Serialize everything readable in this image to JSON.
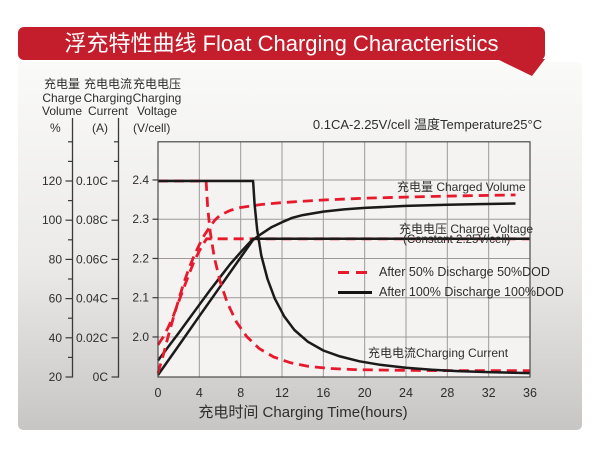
{
  "banner": {
    "title": "浮充特性曲线 Float Charging Characteristics",
    "color": "#c41e2d"
  },
  "condition": "0.1CA-2.25V/cell  温度Temperature25°C",
  "axis_headers": [
    {
      "cn": "充电量",
      "en1": "Charge",
      "en2": "Volume",
      "unit": "%"
    },
    {
      "cn": "充电电流",
      "en1": "Charging",
      "en2": "Current",
      "unit": "(A)"
    },
    {
      "cn": "充电电压",
      "en1": "Charging",
      "en2": "Voltage",
      "unit": "(V/cell)"
    }
  ],
  "chart_data": {
    "type": "line",
    "title": "浮充特性曲线 Float Charging Characteristics",
    "condition": "0.1CA-2.25V/cell 温度Temperature25°C",
    "x_axis": {
      "label": "充电时间 Charging Time(hours)",
      "ticks": [
        0,
        4,
        8,
        12,
        16,
        20,
        24,
        28,
        32,
        36
      ],
      "range": [
        0,
        36
      ]
    },
    "y_axes": {
      "volume": {
        "ticks": [
          20,
          40,
          60,
          80,
          100,
          120
        ],
        "unit": "%",
        "range": [
          20,
          120
        ]
      },
      "current": {
        "tick_labels": [
          "0C",
          "0.02C",
          "0.04C",
          "0.06C",
          "0.08C",
          "0.10C"
        ],
        "tick_values": [
          0,
          0.02,
          0.04,
          0.06,
          0.08,
          0.1
        ],
        "unit": "A(C-rate)"
      },
      "voltage": {
        "ticks": [
          "2.0",
          "2.1",
          "2.2",
          "2.3",
          "2.4"
        ],
        "tick_values": [
          2.0,
          2.1,
          2.2,
          2.3,
          2.4
        ],
        "unit": "V/cell"
      }
    },
    "annotations": {
      "volume": "充电量 Charged Volume",
      "voltage": "充电电压 Charge Voltage",
      "voltage_sub": "(Constant 2.25V/cell)",
      "current": "充电电流Charging Current"
    },
    "legend": [
      {
        "label": "After 50% Discharge 50%DOD",
        "style": "red-dashed"
      },
      {
        "label": "After 100%  Discharge 100%DOD",
        "style": "black-solid"
      }
    ],
    "colors": {
      "red": "#e8192d",
      "black": "#1a1a1a",
      "grid": "#9b9b99",
      "frame": "#4a4a4a",
      "text": "#2e2e2e"
    },
    "series": [
      {
        "name": "charge-voltage-50dod",
        "axis": "voltage",
        "color": "red",
        "dashed": true,
        "points": [
          [
            0,
            1.98
          ],
          [
            0.5,
            2.0
          ],
          [
            1,
            2.025
          ],
          [
            1.5,
            2.055
          ],
          [
            2,
            2.09
          ],
          [
            2.5,
            2.125
          ],
          [
            3,
            2.16
          ],
          [
            3.5,
            2.193
          ],
          [
            4,
            2.219
          ],
          [
            4.4,
            2.238
          ],
          [
            4.7,
            2.25
          ],
          [
            36,
            2.25
          ]
        ]
      },
      {
        "name": "charge-voltage-100dod",
        "axis": "voltage",
        "color": "black",
        "dashed": false,
        "points": [
          [
            0,
            1.94
          ],
          [
            1,
            1.975
          ],
          [
            2,
            2.01
          ],
          [
            3,
            2.046
          ],
          [
            4,
            2.082
          ],
          [
            5,
            2.118
          ],
          [
            6,
            2.152
          ],
          [
            7,
            2.186
          ],
          [
            8,
            2.216
          ],
          [
            8.7,
            2.236
          ],
          [
            9.2,
            2.25
          ],
          [
            36,
            2.25
          ]
        ]
      },
      {
        "name": "charged-volume-100dod",
        "axis": "volume",
        "color": "black",
        "dashed": false,
        "points": [
          [
            0,
            21
          ],
          [
            2,
            36
          ],
          [
            4,
            51
          ],
          [
            6,
            66
          ],
          [
            8,
            81
          ],
          [
            9.2,
            90
          ],
          [
            10,
            93
          ],
          [
            11,
            96.5
          ],
          [
            12,
            99
          ],
          [
            13,
            101.2
          ],
          [
            14,
            102.6
          ],
          [
            16,
            104.4
          ],
          [
            18,
            105.5
          ],
          [
            20,
            106.3
          ],
          [
            24,
            107.3
          ],
          [
            28,
            107.9
          ],
          [
            31,
            108.2
          ],
          [
            34.6,
            108.5
          ]
        ]
      },
      {
        "name": "charged-volume-50dod",
        "axis": "volume",
        "color": "red",
        "dashed": true,
        "points": [
          [
            0,
            22
          ],
          [
            0.5,
            31
          ],
          [
            1,
            41
          ],
          [
            1.5,
            50.5
          ],
          [
            2,
            59.5
          ],
          [
            2.5,
            68
          ],
          [
            3,
            75.5
          ],
          [
            3.5,
            82
          ],
          [
            4,
            87.5
          ],
          [
            4.5,
            92.5
          ],
          [
            5,
            96.5
          ],
          [
            5.5,
            100
          ],
          [
            6,
            102.5
          ],
          [
            7,
            105
          ],
          [
            8,
            106.5
          ],
          [
            10,
            108
          ],
          [
            12,
            109
          ],
          [
            16,
            110.3
          ],
          [
            20,
            111.2
          ],
          [
            24,
            111.8
          ],
          [
            28,
            112.3
          ],
          [
            34.6,
            112.9
          ]
        ]
      },
      {
        "name": "charging-current-50dod",
        "axis": "current",
        "color": "red",
        "dashed": true,
        "points": [
          [
            0,
            0.1
          ],
          [
            4.65,
            0.1
          ],
          [
            4.8,
            0.087
          ],
          [
            5.05,
            0.074
          ],
          [
            5.45,
            0.061
          ],
          [
            6,
            0.049
          ],
          [
            6.7,
            0.038
          ],
          [
            7.6,
            0.028
          ],
          [
            8.6,
            0.0205
          ],
          [
            9.8,
            0.0145
          ],
          [
            11.2,
            0.0102
          ],
          [
            12.8,
            0.0073
          ],
          [
            14.5,
            0.0055
          ],
          [
            16.5,
            0.0044
          ],
          [
            19,
            0.0038
          ],
          [
            22,
            0.0035
          ],
          [
            26,
            0.0033
          ],
          [
            31,
            0.0032
          ],
          [
            36,
            0.0032
          ]
        ]
      },
      {
        "name": "charging-current-100dod",
        "axis": "current",
        "color": "black",
        "dashed": false,
        "points": [
          [
            0,
            0.1
          ],
          [
            9.2,
            0.1
          ],
          [
            9.35,
            0.088
          ],
          [
            9.6,
            0.075
          ],
          [
            10,
            0.062
          ],
          [
            10.6,
            0.05
          ],
          [
            11.3,
            0.04
          ],
          [
            12.2,
            0.031
          ],
          [
            13.2,
            0.024
          ],
          [
            14.5,
            0.018
          ],
          [
            16,
            0.0135
          ],
          [
            17.6,
            0.0105
          ],
          [
            19.5,
            0.008
          ],
          [
            21.5,
            0.0062
          ],
          [
            24,
            0.0047
          ],
          [
            26.5,
            0.0037
          ],
          [
            29,
            0.003
          ],
          [
            32,
            0.0025
          ],
          [
            36,
            0.002
          ]
        ]
      }
    ]
  }
}
